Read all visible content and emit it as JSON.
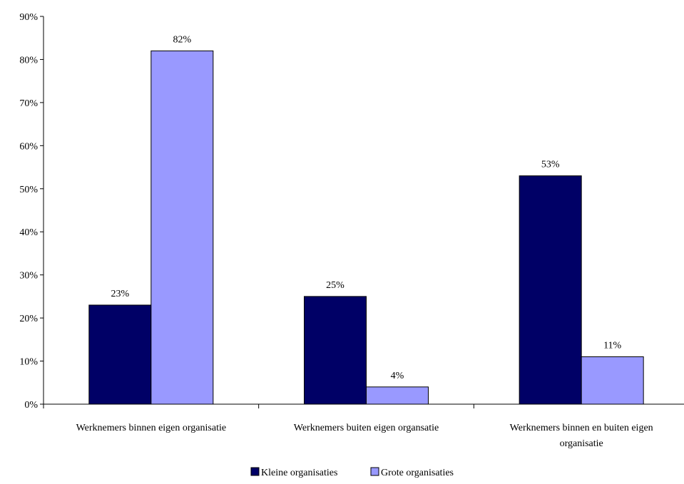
{
  "chart_data": {
    "type": "bar",
    "categories": [
      [
        "Werknemers binnen eigen organisatie"
      ],
      [
        "Werknemers buiten eigen organsatie"
      ],
      [
        "Werknemers binnen en buiten eigen",
        "organisatie"
      ]
    ],
    "series": [
      {
        "name": "Kleine organisaties",
        "color": "#000066",
        "values": [
          23,
          25,
          53
        ]
      },
      {
        "name": "Grote organisaties",
        "color": "#9999ff",
        "values": [
          82,
          4,
          11
        ]
      }
    ],
    "data_labels": [
      [
        "23%",
        "25%",
        "53%"
      ],
      [
        "82%",
        "4%",
        "11%"
      ]
    ],
    "yticks": [
      {
        "value": 0,
        "label": "0%"
      },
      {
        "value": 10,
        "label": "10%"
      },
      {
        "value": 20,
        "label": "20%"
      },
      {
        "value": 30,
        "label": "30%"
      },
      {
        "value": 40,
        "label": "40%"
      },
      {
        "value": 50,
        "label": "50%"
      },
      {
        "value": 60,
        "label": "60%"
      },
      {
        "value": 70,
        "label": "70%"
      },
      {
        "value": 80,
        "label": "80%"
      },
      {
        "value": 90,
        "label": "90%"
      }
    ],
    "ylim": [
      0,
      90
    ],
    "grid": false,
    "legend_position": "bottom",
    "bar_outline_color": "#000000",
    "axis_color": "#000000"
  }
}
